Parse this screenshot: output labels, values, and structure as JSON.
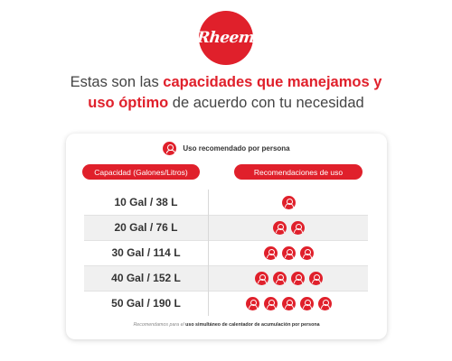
{
  "brand": {
    "logo_text": "Rheem",
    "color": "#e0202b"
  },
  "headline": {
    "part1": "Estas son las ",
    "accent1": "capacidades que manejamos y",
    "accent2": "uso óptimo",
    "part2": " de acuerdo con tu necesidad"
  },
  "legend": {
    "icon": "person-icon",
    "label": "Uso recomendado por persona"
  },
  "table": {
    "header_capacity": "Capacidad (Galones/Litros)",
    "header_recommendation": "Recomendaciones de uso",
    "rows": [
      {
        "capacity": "10 Gal / 38 L",
        "persons": 1
      },
      {
        "capacity": "20 Gal / 76 L",
        "persons": 2
      },
      {
        "capacity": "30 Gal / 114 L",
        "persons": 3
      },
      {
        "capacity": "40 Gal / 152 L",
        "persons": 4
      },
      {
        "capacity": "50 Gal / 190 L",
        "persons": 5
      }
    ]
  },
  "footnote": {
    "light": "Recomendamos para el ",
    "strong": "uso simultáneo de calentador de acumulación por persona"
  }
}
